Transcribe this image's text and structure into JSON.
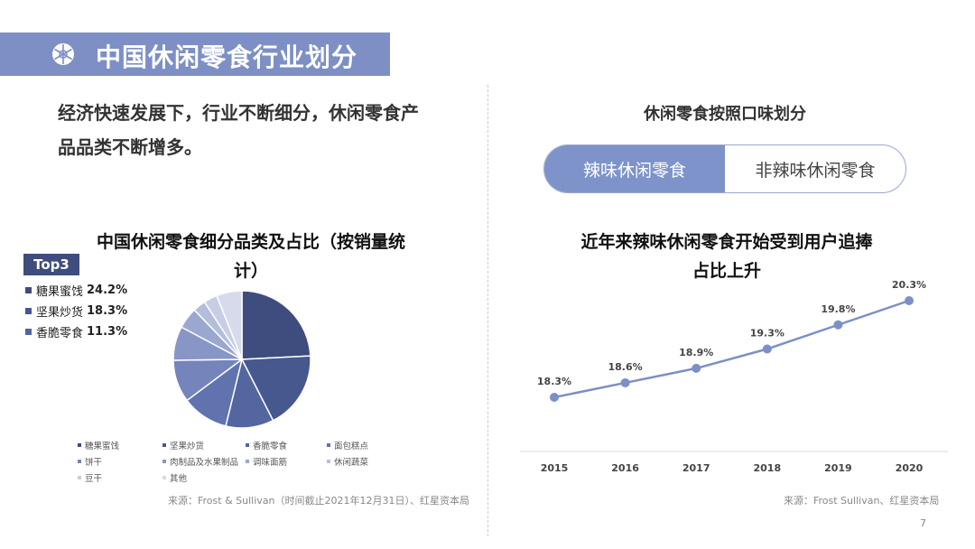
{
  "header": {
    "title": "中国休闲零食行业划分"
  },
  "intro": {
    "line1": "经济快速发展下，行业不断细分，休闲零食产",
    "line2": "品品类不断增多。"
  },
  "pie_section": {
    "title_line1": "中国休闲零食细分品类及占比（按销量统",
    "title_line2": "计）",
    "top3_badge": "Top3",
    "top3": [
      {
        "name": "糖果蜜饯",
        "pct": "24.2%"
      },
      {
        "name": "坚果炒货",
        "pct": "18.3%"
      },
      {
        "name": "香脆零食",
        "pct": "11.3%"
      }
    ],
    "source": "来源：Frost & Sullivan（时间截止2021年12月31日）、红星资本局"
  },
  "flavor_section": {
    "title": "休闲零食按照口味划分",
    "options": [
      "辣味休闲零食",
      "非辣味休闲零食"
    ],
    "selected": "辣味休闲零食"
  },
  "line_section": {
    "title_line1": "近年来辣味休闲零食开始受到用户追捧",
    "title_line2": "占比上升",
    "source": "来源：Frost Sullivan、红星资本局"
  },
  "page_number": "7",
  "colors": {
    "title_bar": "#7d8fc4",
    "badge": "#3e4c7e",
    "toggle_active": "#7d93c9",
    "line": "#7d8fc4"
  },
  "chart_data": [
    {
      "type": "pie",
      "title": "中国休闲零食细分品类及占比（按销量统计）",
      "categories": [
        "糖果蜜饯",
        "坚果炒货",
        "香脆零食",
        "面包糕点",
        "饼干",
        "肉制品及水果制品",
        "调味面筋",
        "休闲蔬菜",
        "豆干",
        "其他"
      ],
      "values": [
        24.2,
        18.3,
        11.3,
        11.0,
        10.0,
        8.0,
        5.0,
        3.0,
        3.2,
        6.0
      ],
      "colors": [
        "#3e4d7d",
        "#47588f",
        "#5466a0",
        "#6173ae",
        "#7584bb",
        "#8796c6",
        "#9aa7cf",
        "#b4bedc",
        "#c6cde4",
        "#d6dbeb"
      ],
      "legend": "bottom"
    },
    {
      "type": "line",
      "title": "近年来辣味休闲零食开始受到用户追捧占比上升",
      "x": [
        "2015",
        "2016",
        "2017",
        "2018",
        "2019",
        "2020"
      ],
      "values": [
        18.3,
        18.6,
        18.9,
        19.3,
        19.8,
        20.3
      ],
      "labels": [
        "18.3%",
        "18.6%",
        "18.9%",
        "19.3%",
        "19.8%",
        "20.3%"
      ],
      "ylim": [
        17.0,
        20.5
      ],
      "grid": false
    }
  ]
}
